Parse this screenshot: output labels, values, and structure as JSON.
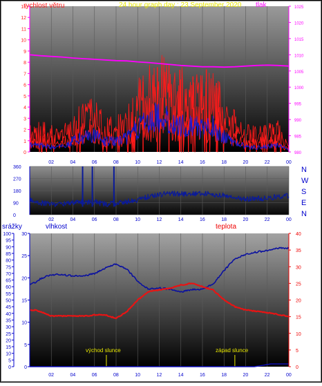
{
  "header": {
    "title": "24 hour graph day : 23 September 2020",
    "left_label": "rychlost větru",
    "right_label": "tlak"
  },
  "colors": {
    "wind": "#ff1a1a",
    "gust": "#ff1a1a",
    "wind_avg": "#1a1ad9",
    "pressure": "#ff00ff",
    "direction": "#0a1a9a",
    "humidity": "#0a10a0",
    "temperature": "#e81414",
    "rain": "#1010c0",
    "title": "#e8e800",
    "magenta_text": "#ff00ff",
    "blue_text": "#0000cc",
    "red_text": "#ee0000"
  },
  "x_ticks": [
    "02",
    "04",
    "06",
    "08",
    "10",
    "12",
    "14",
    "16",
    "18",
    "20",
    "22",
    "00"
  ],
  "chart_data": [
    {
      "id": "wind_pressure",
      "type": "line",
      "title": "24 hour graph day : 23 September 2020",
      "ylabel": "rychlost větru",
      "y2label": "tlak",
      "ylim": [
        0,
        13
      ],
      "y2lim": [
        980,
        1025
      ],
      "y_ticks": [
        "0",
        "1",
        "2",
        "3",
        "4",
        "5",
        "6",
        "7",
        "8",
        "9",
        "10",
        "11",
        "12",
        "13"
      ],
      "y2_ticks": [
        "980",
        "985",
        "990",
        "995",
        "1000",
        "1005",
        "1010",
        "1015",
        "1020",
        "1025"
      ],
      "series": [
        {
          "name": "",
          "key": "pressure",
          "hours": [
            0,
            1,
            2,
            3,
            4,
            5,
            6,
            7,
            8,
            9,
            10,
            11,
            12,
            13,
            14,
            15,
            16,
            17,
            18,
            19,
            20,
            21,
            22,
            23,
            24
          ],
          "values": [
            1010,
            1009.7,
            1009.5,
            1009.3,
            1009.0,
            1008.8,
            1008.6,
            1008.4,
            1008.2,
            1008.1,
            1007.8,
            1007.6,
            1007.3,
            1007.0,
            1006.7,
            1006.5,
            1006.3,
            1006.3,
            1006.2,
            1006.3,
            1006.5,
            1006.7,
            1006.8,
            1006.7,
            1006.5
          ]
        },
        {
          "name": "",
          "key": "gust_envelope",
          "hours": [
            0,
            1,
            2,
            3,
            4,
            5,
            6,
            7,
            8,
            9,
            10,
            11,
            12,
            13,
            14,
            15,
            16,
            17,
            18,
            19,
            20,
            21,
            22,
            23,
            24
          ],
          "values": [
            2.6,
            2.8,
            2.4,
            2.2,
            3.5,
            4.6,
            4.8,
            3.2,
            3.4,
            4.2,
            6.5,
            8.6,
            9.2,
            8.0,
            7.6,
            7.6,
            7.4,
            7.4,
            5.6,
            3.8,
            2.8,
            2.2,
            2.6,
            2.8,
            0.6
          ]
        },
        {
          "name": "",
          "key": "wind_avg",
          "hours": [
            0,
            1,
            2,
            3,
            4,
            5,
            6,
            7,
            8,
            9,
            10,
            11,
            12,
            13,
            14,
            15,
            16,
            17,
            18,
            19,
            20,
            21,
            22,
            23,
            24
          ],
          "values": [
            0.6,
            0.6,
            0.5,
            0.5,
            1.0,
            1.4,
            1.5,
            1.0,
            1.0,
            1.3,
            2.2,
            3.0,
            3.3,
            2.8,
            2.5,
            2.4,
            2.2,
            2.3,
            1.4,
            0.8,
            0.5,
            0.4,
            0.5,
            0.6,
            0.2
          ]
        }
      ]
    },
    {
      "id": "wind_direction",
      "type": "line",
      "ylim": [
        0,
        360
      ],
      "y_ticks": [
        "0",
        "90",
        "180",
        "270",
        "360"
      ],
      "compass": [
        "N",
        "W",
        "S",
        "E",
        "N"
      ],
      "series": [
        {
          "name": "",
          "key": "direction",
          "hours": [
            0,
            1,
            2,
            3,
            4,
            5,
            6,
            7,
            8,
            9,
            10,
            11,
            12,
            13,
            14,
            15,
            16,
            17,
            18,
            19,
            20,
            21,
            22,
            23,
            24
          ],
          "values": [
            110,
            90,
            80,
            80,
            90,
            95,
            95,
            80,
            85,
            100,
            110,
            135,
            150,
            160,
            155,
            155,
            160,
            150,
            145,
            130,
            115,
            120,
            125,
            135,
            140
          ]
        }
      ]
    },
    {
      "id": "temp_humidity",
      "type": "line",
      "labels": {
        "rain": "srážky",
        "humidity": "vlhkost",
        "temperature": "teplota"
      },
      "rain_ylim": [
        0,
        100
      ],
      "rain_ticks": [
        "0",
        "5",
        "10",
        "15",
        "20",
        "25",
        "30",
        "35",
        "40",
        "45",
        "50",
        "55",
        "60",
        "65",
        "70",
        "75",
        "80",
        "85",
        "90",
        "95",
        "100"
      ],
      "humidity_ylim": [
        0,
        30
      ],
      "humidity_ticks": [
        "0",
        "5",
        "10",
        "15",
        "20",
        "25",
        "30"
      ],
      "temp_ylim": [
        0,
        40
      ],
      "temp_ticks": [
        "0",
        "5",
        "10",
        "15",
        "20",
        "25",
        "30",
        "35",
        "40"
      ],
      "sunrise_label": "východ slunce",
      "sunset_label": "západ slunce",
      "sunrise_hour": 7.1,
      "sunset_hour": 19.0,
      "series": [
        {
          "name": "",
          "key": "humidity",
          "axis": "rain",
          "hours": [
            0,
            0.5,
            1,
            2,
            3,
            4,
            5,
            6,
            7,
            8,
            9,
            10,
            11,
            12,
            13,
            14,
            15,
            16,
            17,
            18,
            19,
            20,
            21,
            22,
            23,
            24
          ],
          "values": [
            62,
            63,
            66,
            69,
            69,
            68,
            68,
            70,
            74,
            77,
            73,
            64,
            58,
            59,
            58,
            56,
            58,
            58,
            62,
            72,
            81,
            84,
            86,
            87,
            89,
            89
          ]
        },
        {
          "name": "",
          "key": "temperature",
          "axis": "temp",
          "hours": [
            0,
            0.5,
            1,
            2,
            3,
            4,
            5,
            6,
            7,
            8,
            9,
            10,
            11,
            12,
            13,
            14,
            15,
            16,
            17,
            18,
            19,
            20,
            21,
            22,
            23,
            24
          ],
          "values": [
            17,
            17,
            16.5,
            15.2,
            15.2,
            15.2,
            15.2,
            15.5,
            15.5,
            14.5,
            16.5,
            20,
            22.5,
            23,
            23.5,
            24.5,
            25,
            24,
            23,
            20,
            18,
            17,
            16.6,
            16.2,
            15.7,
            15
          ]
        },
        {
          "name": "",
          "key": "rain",
          "axis": "rain",
          "hours": [
            0,
            20.8,
            21.6,
            22.3,
            23,
            24
          ],
          "values": [
            0,
            0,
            1,
            2,
            2,
            2
          ]
        }
      ]
    }
  ]
}
